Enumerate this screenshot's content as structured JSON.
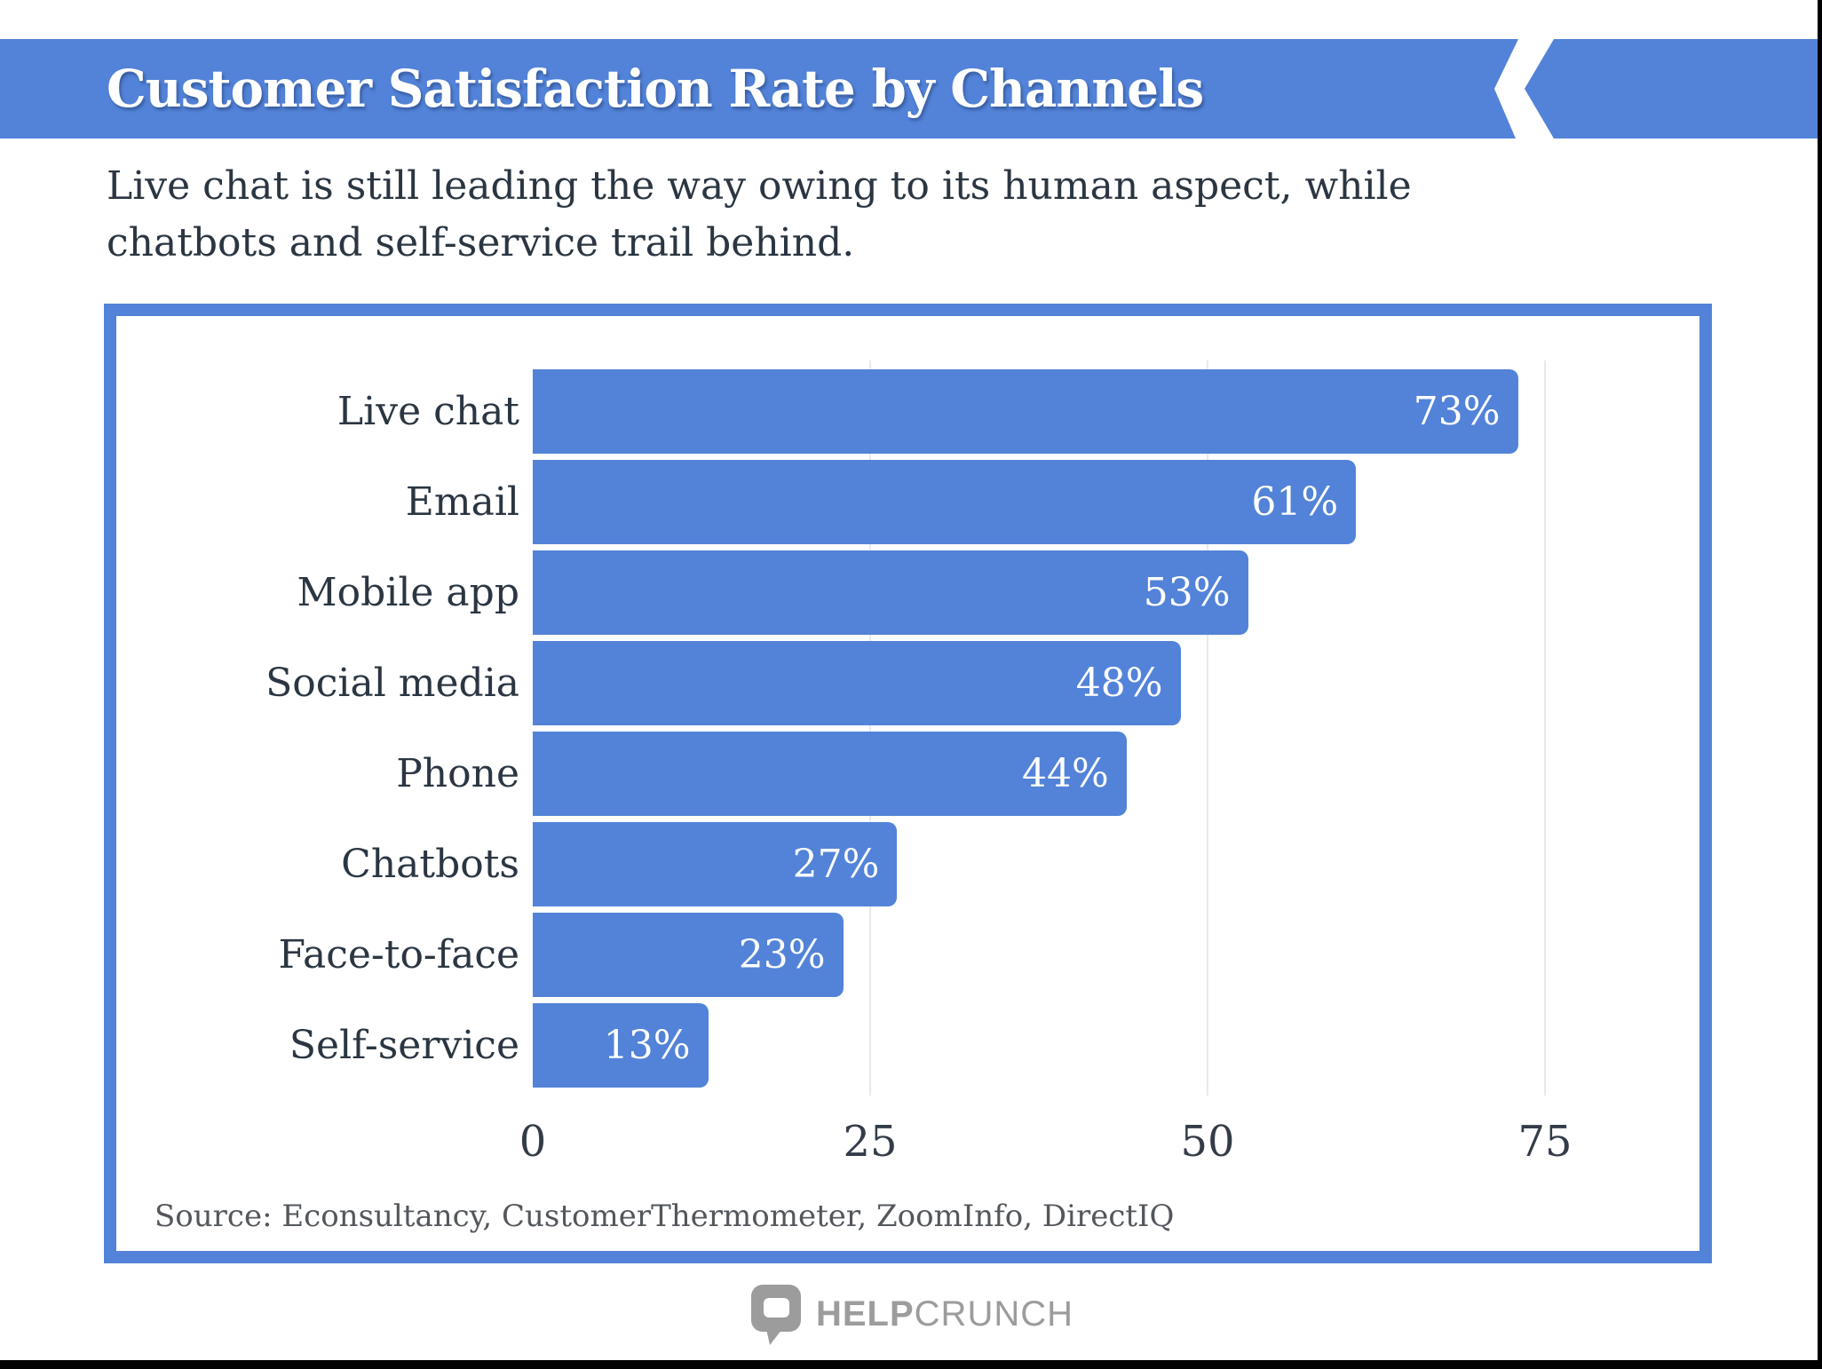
{
  "header": {
    "title": "Customer Satisfaction Rate by Channels",
    "accent_color": "#5283d8"
  },
  "subtitle": {
    "line1": "Live chat is still leading the way owing to its human aspect, while",
    "line2": "chatbots and self-service trail behind."
  },
  "chart_data": {
    "type": "bar",
    "orientation": "horizontal",
    "title": "Customer Satisfaction Rate by Channels",
    "categories": [
      "Live chat",
      "Email",
      "Mobile app",
      "Social media",
      "Phone",
      "Chatbots",
      "Face-to-face",
      "Self-service"
    ],
    "values": [
      73,
      61,
      53,
      48,
      44,
      27,
      23,
      13
    ],
    "value_labels": [
      "73%",
      "61%",
      "53%",
      "48%",
      "44%",
      "27%",
      "23%",
      "13%"
    ],
    "xlabel": "",
    "ylabel": "",
    "x_ticks": [
      0,
      25,
      50,
      75
    ],
    "xlim": [
      0,
      80
    ],
    "grid": "vertical gridlines at 25, 50, 75",
    "legend": "none",
    "bar_color": "#5283d8",
    "value_label_color": "#ffffff",
    "gridline_color": "#e7e9ee"
  },
  "source_note": "Source: Econsultancy, CustomerThermometer, ZoomInfo, DirectIQ",
  "logo": {
    "brand_bold": "HELP",
    "brand_light": "CRUNCH",
    "icon": "speech-bubble-icon",
    "color": "#9c9c9c"
  }
}
